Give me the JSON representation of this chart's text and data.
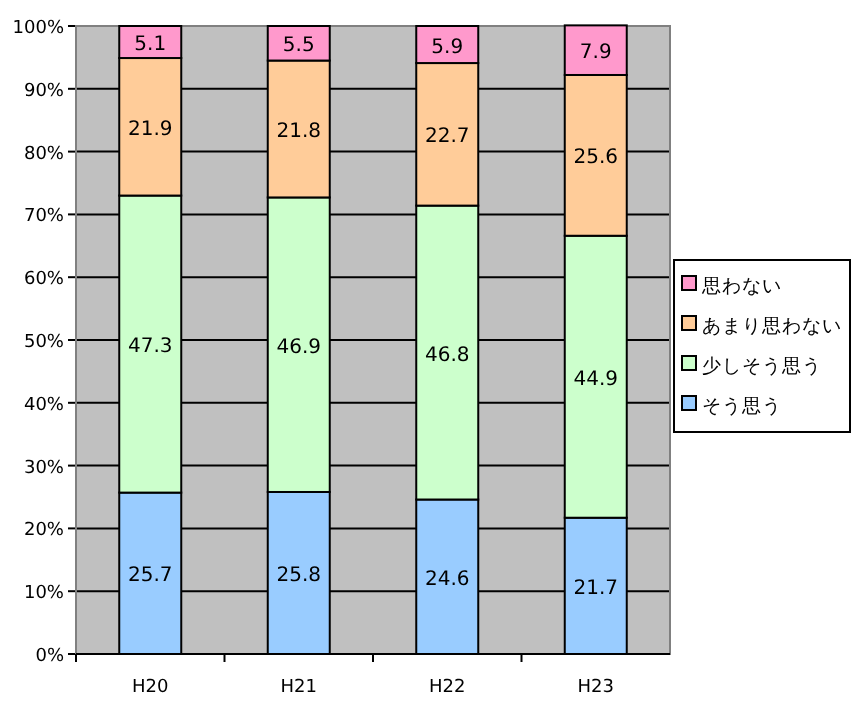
{
  "chart_data": {
    "type": "bar",
    "stacked": true,
    "categories": [
      "H20",
      "H21",
      "H22",
      "H23"
    ],
    "series": [
      {
        "name": "そう思う",
        "color": "#99ccff",
        "values": [
          25.7,
          25.8,
          24.6,
          21.7
        ]
      },
      {
        "name": "少しそう思う",
        "color": "#ccffcc",
        "values": [
          47.3,
          46.9,
          46.8,
          44.9
        ]
      },
      {
        "name": "あまり思わない",
        "color": "#ffcc99",
        "values": [
          21.9,
          21.8,
          22.7,
          25.6
        ]
      },
      {
        "name": "思わない",
        "color": "#ff99cc",
        "values": [
          5.1,
          5.5,
          5.9,
          7.9
        ]
      }
    ],
    "ylim": [
      0,
      100
    ],
    "yticks": [
      {
        "value": 0,
        "label": "0%"
      },
      {
        "value": 10,
        "label": "10%"
      },
      {
        "value": 20,
        "label": "20%"
      },
      {
        "value": 30,
        "label": "30%"
      },
      {
        "value": 40,
        "label": "40%"
      },
      {
        "value": 50,
        "label": "50%"
      },
      {
        "value": 60,
        "label": "60%"
      },
      {
        "value": 70,
        "label": "70%"
      },
      {
        "value": 80,
        "label": "80%"
      },
      {
        "value": 90,
        "label": "90%"
      },
      {
        "value": 100,
        "label": "100%"
      }
    ],
    "grid": "y",
    "legend": "right",
    "data_labels": true
  }
}
